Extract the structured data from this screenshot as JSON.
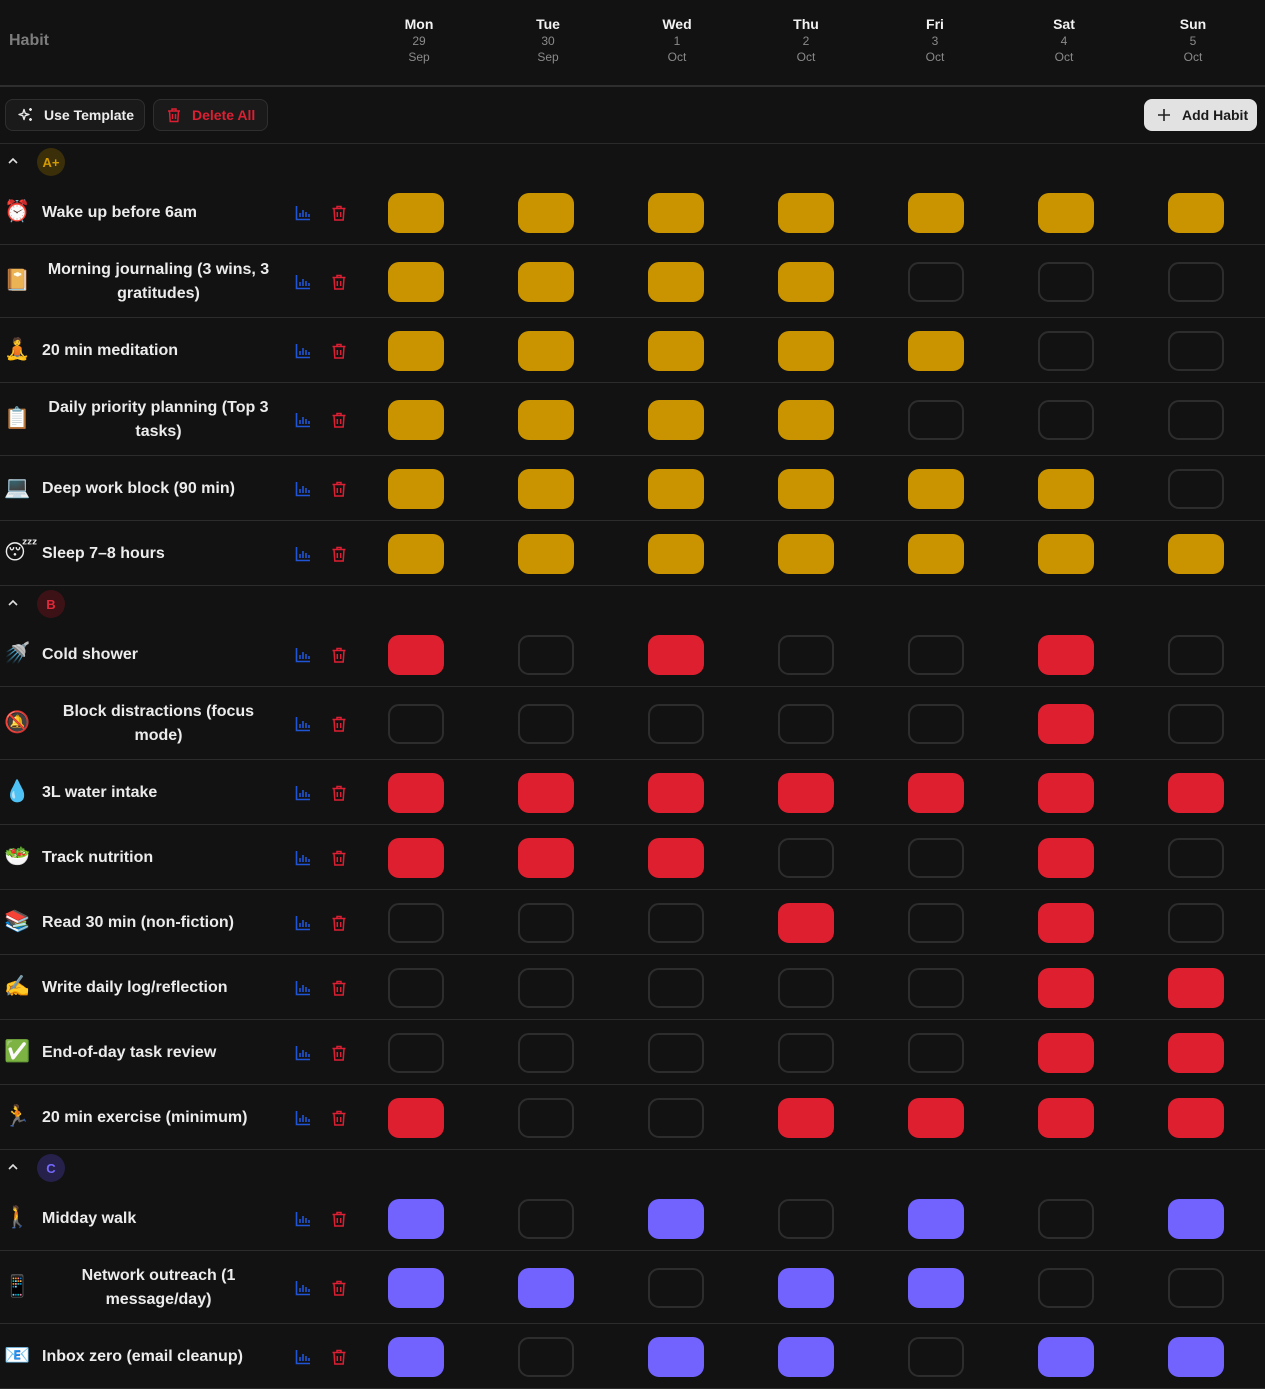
{
  "header": {
    "habit_label": "Habit",
    "days": [
      {
        "name": "Mon",
        "num": "29",
        "month": "Sep"
      },
      {
        "name": "Tue",
        "num": "30",
        "month": "Sep"
      },
      {
        "name": "Wed",
        "num": "1",
        "month": "Oct"
      },
      {
        "name": "Thu",
        "num": "2",
        "month": "Oct"
      },
      {
        "name": "Fri",
        "num": "3",
        "month": "Oct"
      },
      {
        "name": "Sat",
        "num": "4",
        "month": "Oct"
      },
      {
        "name": "Sun",
        "num": "5",
        "month": "Oct"
      }
    ]
  },
  "toolbar": {
    "use_template_label": "Use Template",
    "delete_all_label": "Delete All",
    "add_habit_label": "Add Habit"
  },
  "colors": {
    "background": "#121212",
    "gold": "#c99400",
    "red": "#de1f30",
    "purple": "#7263ff",
    "stats_icon": "#1f55d6",
    "trash_icon": "#dc1f33"
  },
  "groups": [
    {
      "label": "A+",
      "badge_bg": "#3b2f0a",
      "badge_fg": "#d49a00",
      "color": "#c99400",
      "habits": [
        {
          "emoji": "⏰",
          "icon": "alarm-clock-icon",
          "name": "Wake up before 6am",
          "checks": [
            1,
            1,
            1,
            1,
            1,
            1,
            1
          ]
        },
        {
          "emoji": "📔",
          "icon": "notebook-icon",
          "name": "Morning journaling (3 wins, 3 gratitudes)",
          "checks": [
            1,
            1,
            1,
            1,
            0,
            0,
            0
          ]
        },
        {
          "emoji": "🧘",
          "icon": "meditation-icon",
          "name": "20 min meditation",
          "checks": [
            1,
            1,
            1,
            1,
            1,
            0,
            0
          ]
        },
        {
          "emoji": "📋",
          "icon": "clipboard-icon",
          "name": "Daily priority planning (Top 3 tasks)",
          "checks": [
            1,
            1,
            1,
            1,
            0,
            0,
            0
          ]
        },
        {
          "emoji": "💻",
          "icon": "laptop-icon",
          "name": "Deep work block (90 min)",
          "checks": [
            1,
            1,
            1,
            1,
            1,
            1,
            0
          ]
        },
        {
          "emoji": "😴",
          "icon": "sleeping-face-icon",
          "name": "Sleep 7–8 hours",
          "checks": [
            1,
            1,
            1,
            1,
            1,
            1,
            1
          ]
        }
      ]
    },
    {
      "label": "B",
      "badge_bg": "#3d1216",
      "badge_fg": "#e0283a",
      "color": "#de1f30",
      "habits": [
        {
          "emoji": "🚿",
          "icon": "shower-icon",
          "name": "Cold shower",
          "checks": [
            1,
            0,
            1,
            0,
            0,
            1,
            0
          ]
        },
        {
          "emoji": "🔕",
          "icon": "bell-muted-icon",
          "name": "Block distractions (focus mode)",
          "checks": [
            0,
            0,
            0,
            0,
            0,
            1,
            0
          ]
        },
        {
          "emoji": "💧",
          "icon": "water-drop-icon",
          "name": "3L water intake",
          "checks": [
            1,
            1,
            1,
            1,
            1,
            1,
            1
          ]
        },
        {
          "emoji": "🥗",
          "icon": "salad-icon",
          "name": "Track nutrition",
          "checks": [
            1,
            1,
            1,
            0,
            0,
            1,
            0
          ]
        },
        {
          "emoji": "📚",
          "icon": "books-icon",
          "name": "Read 30 min (non-fiction)",
          "checks": [
            0,
            0,
            0,
            1,
            0,
            1,
            0
          ]
        },
        {
          "emoji": "✍️",
          "icon": "writing-hand-icon",
          "name": "Write daily log/reflection",
          "checks": [
            0,
            0,
            0,
            0,
            0,
            1,
            1
          ]
        },
        {
          "emoji": "✅",
          "icon": "check-mark-icon",
          "name": "End-of-day task review",
          "checks": [
            0,
            0,
            0,
            0,
            0,
            1,
            1
          ]
        },
        {
          "emoji": "🏃",
          "icon": "runner-icon",
          "name": "20 min exercise (minimum)",
          "checks": [
            1,
            0,
            0,
            1,
            1,
            1,
            1
          ]
        }
      ]
    },
    {
      "label": "C",
      "badge_bg": "#25214a",
      "badge_fg": "#7568ff",
      "color": "#7263ff",
      "habits": [
        {
          "emoji": "🚶",
          "icon": "walking-icon",
          "name": "Midday walk",
          "checks": [
            1,
            0,
            1,
            0,
            1,
            0,
            1
          ]
        },
        {
          "emoji": "📱",
          "icon": "phone-icon",
          "name": "Network outreach (1 message/day)",
          "checks": [
            1,
            1,
            0,
            1,
            1,
            0,
            0
          ]
        },
        {
          "emoji": "📧",
          "icon": "email-icon",
          "name": "Inbox zero (email cleanup)",
          "checks": [
            1,
            0,
            1,
            1,
            0,
            1,
            1
          ]
        }
      ]
    }
  ]
}
